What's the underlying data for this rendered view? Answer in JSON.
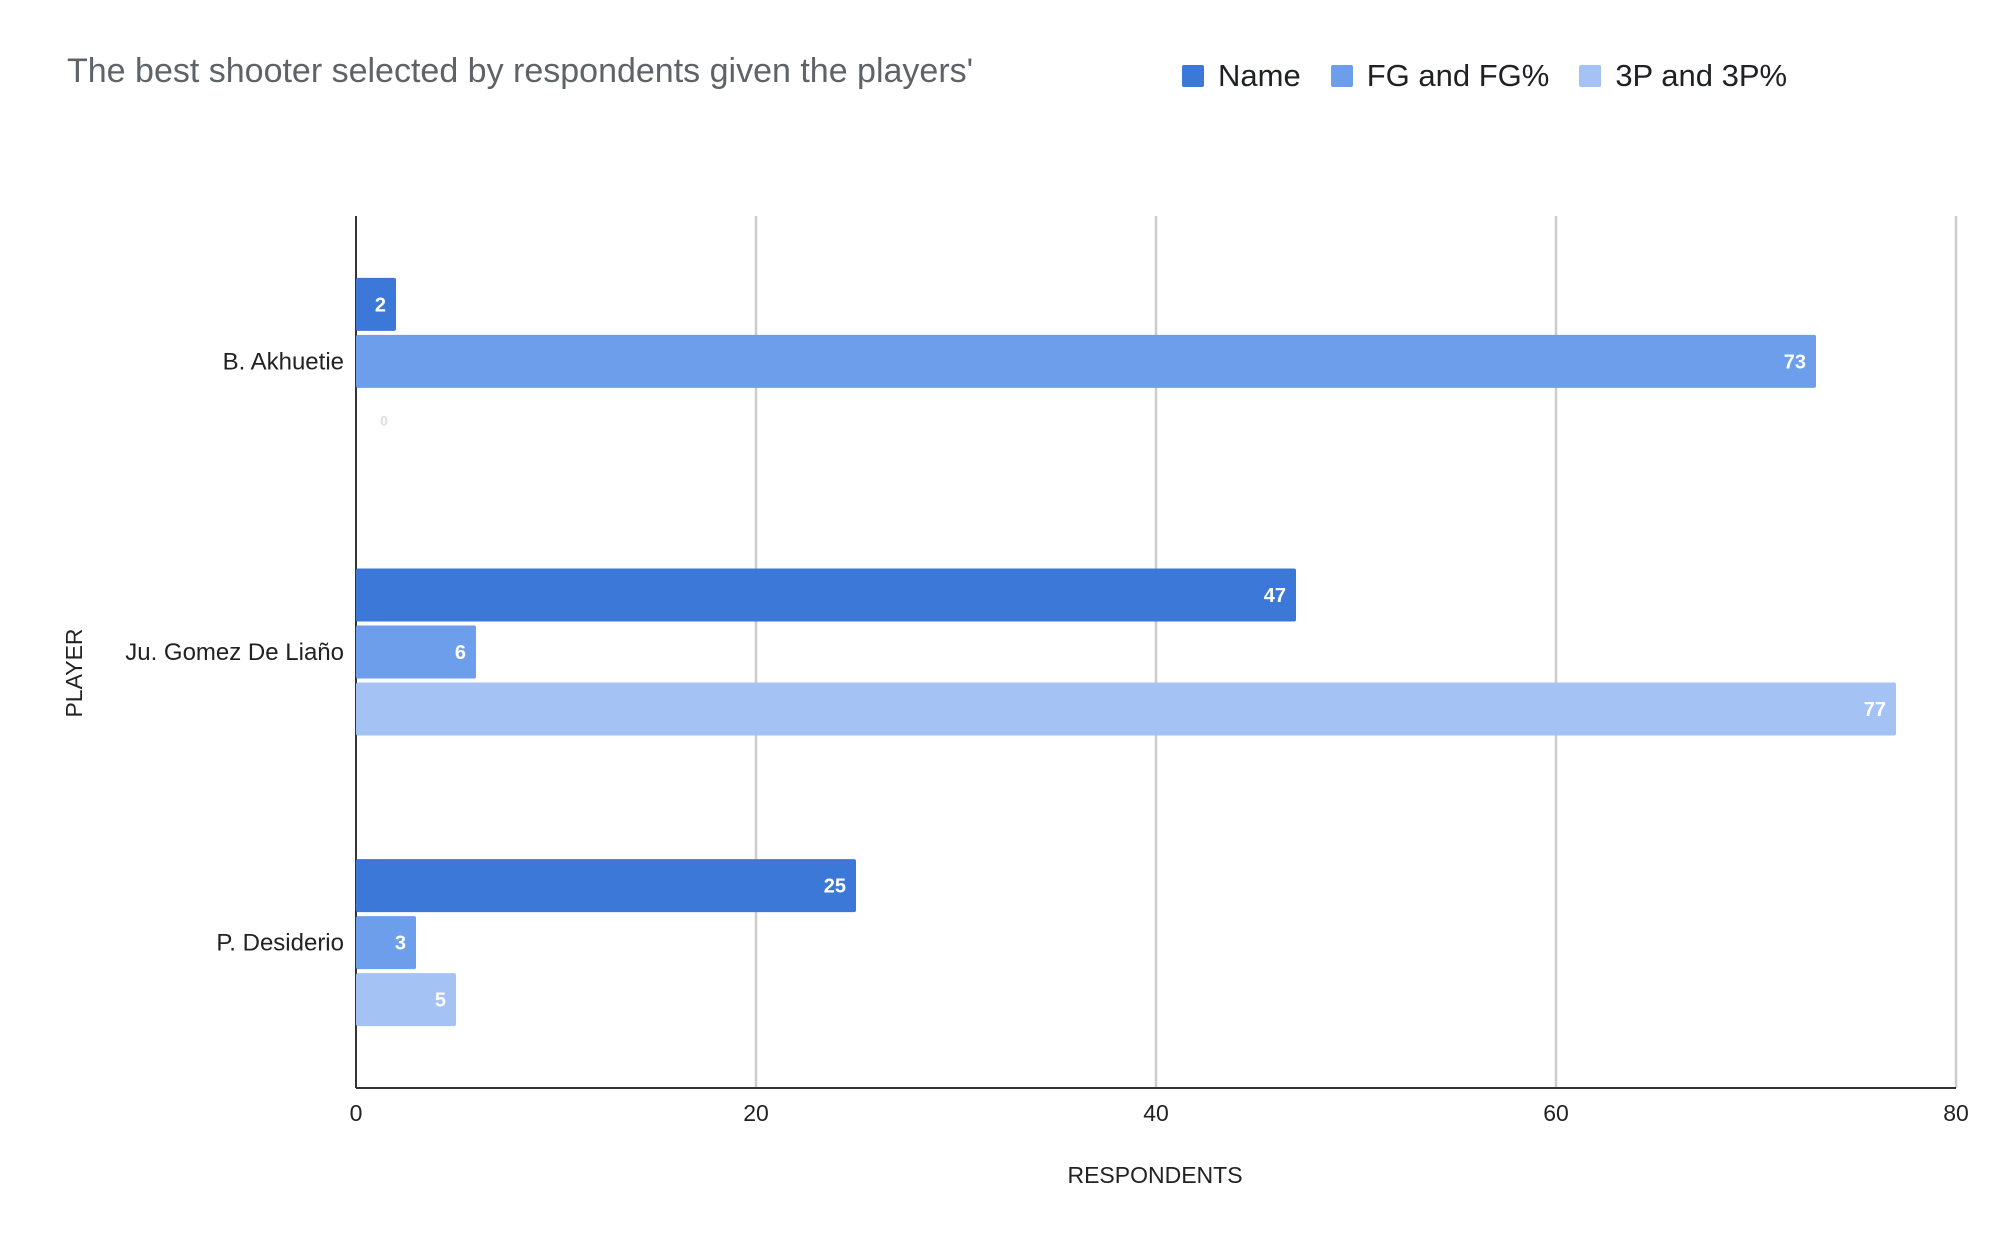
{
  "chart_data": {
    "type": "bar",
    "orientation": "horizontal",
    "title": "The best shooter selected by respondents given the players'",
    "xlabel": "RESPONDENTS",
    "ylabel": "PLAYER",
    "categories": [
      "B. Akhuetie",
      "Ju. Gomez De Liaño",
      "P. Desiderio"
    ],
    "series": [
      {
        "name": "Name",
        "color": "#3c78d8",
        "values": [
          2,
          47,
          25
        ]
      },
      {
        "name": "FG and FG%",
        "color": "#6d9eeb",
        "values": [
          73,
          6,
          3
        ]
      },
      {
        "name": "3P and 3P%",
        "color": "#a4c2f4",
        "values": [
          0,
          77,
          5
        ]
      }
    ],
    "xlim": [
      0,
      80
    ],
    "xticks": [
      0,
      20,
      40,
      60,
      80
    ],
    "grid": true,
    "legend_position": "top",
    "data_labels": true
  }
}
